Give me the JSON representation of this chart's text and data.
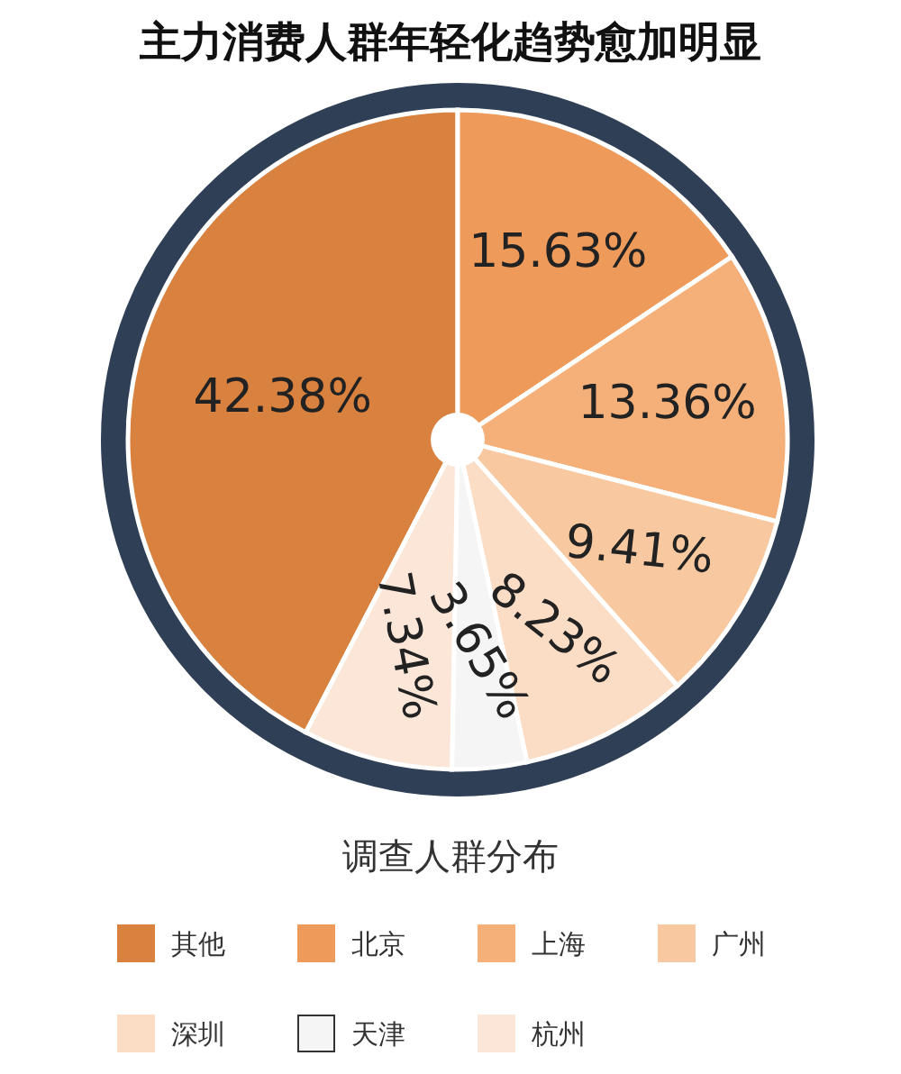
{
  "chart_data": {
    "type": "pie",
    "title": "主力消费人群年轻化趋势愈加明显",
    "legend_title": "调查人群分布",
    "categories": [
      "其他",
      "北京",
      "上海",
      "广州",
      "深圳",
      "天津",
      "杭州"
    ],
    "values": [
      42.38,
      15.63,
      13.36,
      9.41,
      8.23,
      3.65,
      7.34
    ],
    "colors": [
      "#d9813f",
      "#ee9a5a",
      "#f5b07a",
      "#f8c9a0",
      "#fbdcc5",
      "#f5f5f5",
      "#fce6d8"
    ],
    "value_labels": [
      "42.38%",
      "15.63%",
      "13.36%",
      "9.41%",
      "8.23%",
      "3.65%",
      "7.34%"
    ],
    "legend": "bottom"
  }
}
